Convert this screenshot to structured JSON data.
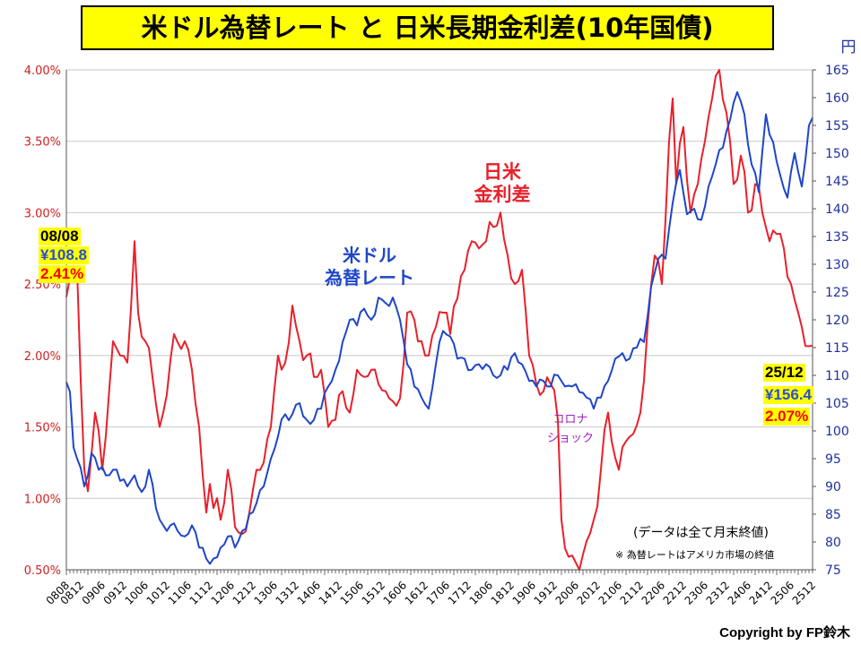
{
  "title": "米ドル為替レート と 日米長期金利差(10年国債)",
  "copyright": "Copyright by FP鈴木",
  "notes": {
    "data_note": "(データは全て月末終値)",
    "fx_note": "※ 為替レートはアメリカ市場の終値"
  },
  "annotations": {
    "start_date": "08/08",
    "start_rate": "¥108.8",
    "start_spread": "2.41%",
    "end_date": "25/12",
    "end_rate": "¥156.4",
    "end_spread": "2.07%",
    "spread_label_line1": "日米",
    "spread_label_line2": "金利差",
    "fx_label_line1": "米ドル",
    "fx_label_line2": "為替レート",
    "corona_line1": "コロナ",
    "corona_line2": "ショック"
  },
  "colors": {
    "spread": "#e8202a",
    "fx": "#1e46c8",
    "left_axis_text": "#d02020",
    "right_axis_text": "#2030a0",
    "corona": "#a020c0",
    "highlight": "#ffff00"
  },
  "chart_data": {
    "type": "line",
    "title": "米ドル為替レート と 日米長期金利差(10年国債)",
    "x_tick_labels": [
      "0808",
      "0812",
      "0906",
      "0912",
      "1006",
      "1012",
      "1106",
      "1112",
      "1206",
      "1212",
      "1306",
      "1312",
      "1406",
      "1412",
      "1506",
      "1512",
      "1606",
      "1612",
      "1706",
      "1712",
      "1806",
      "1812",
      "1906",
      "1912",
      "2006",
      "2012",
      "2106",
      "2112",
      "2206",
      "2212",
      "2306",
      "2312",
      "2406",
      "2412",
      "2506",
      "2512"
    ],
    "y_left": {
      "label": "",
      "min": 0.5,
      "max": 4.0,
      "ticks": [
        "0.50%",
        "1.00%",
        "1.50%",
        "2.00%",
        "2.50%",
        "3.00%",
        "3.50%",
        "4.00%"
      ]
    },
    "y_right": {
      "label": "円",
      "min": 75,
      "max": 165,
      "ticks": [
        "75",
        "80",
        "85",
        "90",
        "95",
        "100",
        "105",
        "110",
        "115",
        "120",
        "125",
        "130",
        "135",
        "140",
        "145",
        "150",
        "155",
        "160",
        "165"
      ]
    },
    "series": [
      {
        "name": "日米金利差",
        "axis": "left",
        "anchors": [
          [
            0,
            2.41
          ],
          [
            3,
            2.6
          ],
          [
            5,
            1.2
          ],
          [
            6,
            1.05
          ],
          [
            8,
            1.6
          ],
          [
            10,
            1.2
          ],
          [
            13,
            2.1
          ],
          [
            15,
            2.0
          ],
          [
            17,
            1.95
          ],
          [
            19,
            2.8
          ],
          [
            20,
            2.3
          ],
          [
            22,
            2.1
          ],
          [
            24,
            1.85
          ],
          [
            26,
            1.5
          ],
          [
            27,
            1.6
          ],
          [
            30,
            2.15
          ],
          [
            33,
            2.1
          ],
          [
            35,
            1.9
          ],
          [
            37,
            1.5
          ],
          [
            39,
            0.9
          ],
          [
            40,
            1.1
          ],
          [
            43,
            0.85
          ],
          [
            45,
            1.2
          ],
          [
            47,
            0.8
          ],
          [
            49,
            0.75
          ],
          [
            51,
            0.9
          ],
          [
            53,
            1.2
          ],
          [
            55,
            1.25
          ],
          [
            57,
            1.5
          ],
          [
            59,
            2.0
          ],
          [
            61,
            1.95
          ],
          [
            63,
            2.35
          ],
          [
            65,
            2.1
          ],
          [
            67,
            2.0
          ],
          [
            69,
            1.85
          ],
          [
            71,
            1.9
          ],
          [
            73,
            1.5
          ],
          [
            75,
            1.55
          ],
          [
            77,
            1.75
          ],
          [
            79,
            1.6
          ],
          [
            81,
            1.9
          ],
          [
            83,
            1.85
          ],
          [
            85,
            1.9
          ],
          [
            87,
            1.8
          ],
          [
            89,
            1.75
          ],
          [
            90,
            1.7
          ],
          [
            93,
            1.7
          ],
          [
            95,
            2.3
          ],
          [
            97,
            2.25
          ],
          [
            99,
            2.1
          ],
          [
            101,
            2.0
          ],
          [
            103,
            2.2
          ],
          [
            105,
            2.3
          ],
          [
            107,
            2.15
          ],
          [
            109,
            2.4
          ],
          [
            111,
            2.6
          ],
          [
            113,
            2.8
          ],
          [
            115,
            2.75
          ],
          [
            117,
            2.8
          ],
          [
            119,
            2.9
          ],
          [
            121,
            3.0
          ],
          [
            123,
            2.7
          ],
          [
            125,
            2.5
          ],
          [
            127,
            2.6
          ],
          [
            129,
            2.0
          ],
          [
            131,
            1.8
          ],
          [
            133,
            1.75
          ],
          [
            135,
            1.8
          ],
          [
            137,
            1.55
          ],
          [
            138,
            0.85
          ],
          [
            139,
            0.65
          ],
          [
            141,
            0.6
          ],
          [
            142,
            0.55
          ],
          [
            143,
            0.5
          ],
          [
            145,
            0.7
          ],
          [
            147,
            0.85
          ],
          [
            149,
            1.2
          ],
          [
            151,
            1.6
          ],
          [
            152,
            1.4
          ],
          [
            154,
            1.2
          ],
          [
            156,
            1.4
          ],
          [
            158,
            1.45
          ],
          [
            160,
            1.6
          ],
          [
            162,
            2.2
          ],
          [
            164,
            2.7
          ],
          [
            166,
            2.5
          ],
          [
            168,
            3.5
          ],
          [
            169,
            3.8
          ],
          [
            170,
            3.2
          ],
          [
            172,
            3.6
          ],
          [
            174,
            3.0
          ],
          [
            176,
            3.2
          ],
          [
            178,
            3.5
          ],
          [
            180,
            3.8
          ],
          [
            182,
            4.0
          ],
          [
            184,
            3.7
          ],
          [
            186,
            3.2
          ],
          [
            188,
            3.4
          ],
          [
            190,
            3.0
          ],
          [
            192,
            3.2
          ],
          [
            194,
            3.0
          ],
          [
            196,
            2.8
          ],
          [
            198,
            2.85
          ],
          [
            200,
            2.75
          ],
          [
            202,
            2.5
          ],
          [
            204,
            2.3
          ],
          [
            205,
            2.2
          ],
          [
            208,
            2.07
          ]
        ],
        "notes": "monthly 2008/08 - 2025/12, values read approximately from chart"
      },
      {
        "name": "米ドル為替レート",
        "axis": "right",
        "anchors": [
          [
            0,
            108.8
          ],
          [
            1,
            107
          ],
          [
            2,
            97
          ],
          [
            3,
            95
          ],
          [
            5,
            90
          ],
          [
            6,
            92
          ],
          [
            7,
            96
          ],
          [
            9,
            93
          ],
          [
            11,
            92
          ],
          [
            13,
            93
          ],
          [
            15,
            91
          ],
          [
            17,
            90
          ],
          [
            19,
            92
          ],
          [
            21,
            89
          ],
          [
            23,
            93
          ],
          [
            25,
            86
          ],
          [
            27,
            83
          ],
          [
            29,
            83
          ],
          [
            31,
            82
          ],
          [
            33,
            81
          ],
          [
            35,
            83
          ],
          [
            37,
            79
          ],
          [
            39,
            77
          ],
          [
            41,
            77
          ],
          [
            43,
            79
          ],
          [
            45,
            81
          ],
          [
            47,
            79
          ],
          [
            49,
            82
          ],
          [
            51,
            85
          ],
          [
            53,
            87
          ],
          [
            55,
            90
          ],
          [
            57,
            95
          ],
          [
            59,
            99
          ],
          [
            61,
            103
          ],
          [
            63,
            103
          ],
          [
            65,
            105
          ],
          [
            67,
            102
          ],
          [
            69,
            102
          ],
          [
            71,
            104
          ],
          [
            73,
            108
          ],
          [
            75,
            111
          ],
          [
            77,
            116
          ],
          [
            79,
            120
          ],
          [
            81,
            119
          ],
          [
            83,
            122
          ],
          [
            85,
            120
          ],
          [
            87,
            124
          ],
          [
            89,
            123
          ],
          [
            91,
            124
          ],
          [
            93,
            120
          ],
          [
            95,
            112
          ],
          [
            97,
            108
          ],
          [
            99,
            106
          ],
          [
            101,
            104
          ],
          [
            103,
            112
          ],
          [
            105,
            118
          ],
          [
            107,
            117
          ],
          [
            109,
            113
          ],
          [
            111,
            113
          ],
          [
            113,
            111
          ],
          [
            115,
            112
          ],
          [
            117,
            112
          ],
          [
            119,
            110
          ],
          [
            121,
            110
          ],
          [
            123,
            111
          ],
          [
            125,
            114
          ],
          [
            127,
            112
          ],
          [
            129,
            109
          ],
          [
            131,
            108
          ],
          [
            133,
            109
          ],
          [
            135,
            108
          ],
          [
            137,
            110
          ],
          [
            139,
            108
          ],
          [
            141,
            108
          ],
          [
            143,
            107
          ],
          [
            145,
            106
          ],
          [
            147,
            104
          ],
          [
            149,
            106
          ],
          [
            151,
            109
          ],
          [
            153,
            113
          ],
          [
            155,
            114
          ],
          [
            157,
            113
          ],
          [
            159,
            115
          ],
          [
            161,
            116
          ],
          [
            163,
            126
          ],
          [
            165,
            131
          ],
          [
            167,
            131
          ],
          [
            169,
            141
          ],
          [
            171,
            147
          ],
          [
            173,
            139
          ],
          [
            175,
            140
          ],
          [
            177,
            138
          ],
          [
            179,
            144
          ],
          [
            181,
            148
          ],
          [
            183,
            151
          ],
          [
            185,
            156
          ],
          [
            187,
            161
          ],
          [
            189,
            157
          ],
          [
            191,
            148
          ],
          [
            193,
            143
          ],
          [
            195,
            157
          ],
          [
            197,
            152
          ],
          [
            199,
            146
          ],
          [
            201,
            142
          ],
          [
            203,
            150
          ],
          [
            205,
            144
          ],
          [
            207,
            155
          ],
          [
            208,
            156.4
          ]
        ],
        "notes": "monthly 2008/08 - 2025/12, values read approximately from chart"
      }
    ]
  }
}
